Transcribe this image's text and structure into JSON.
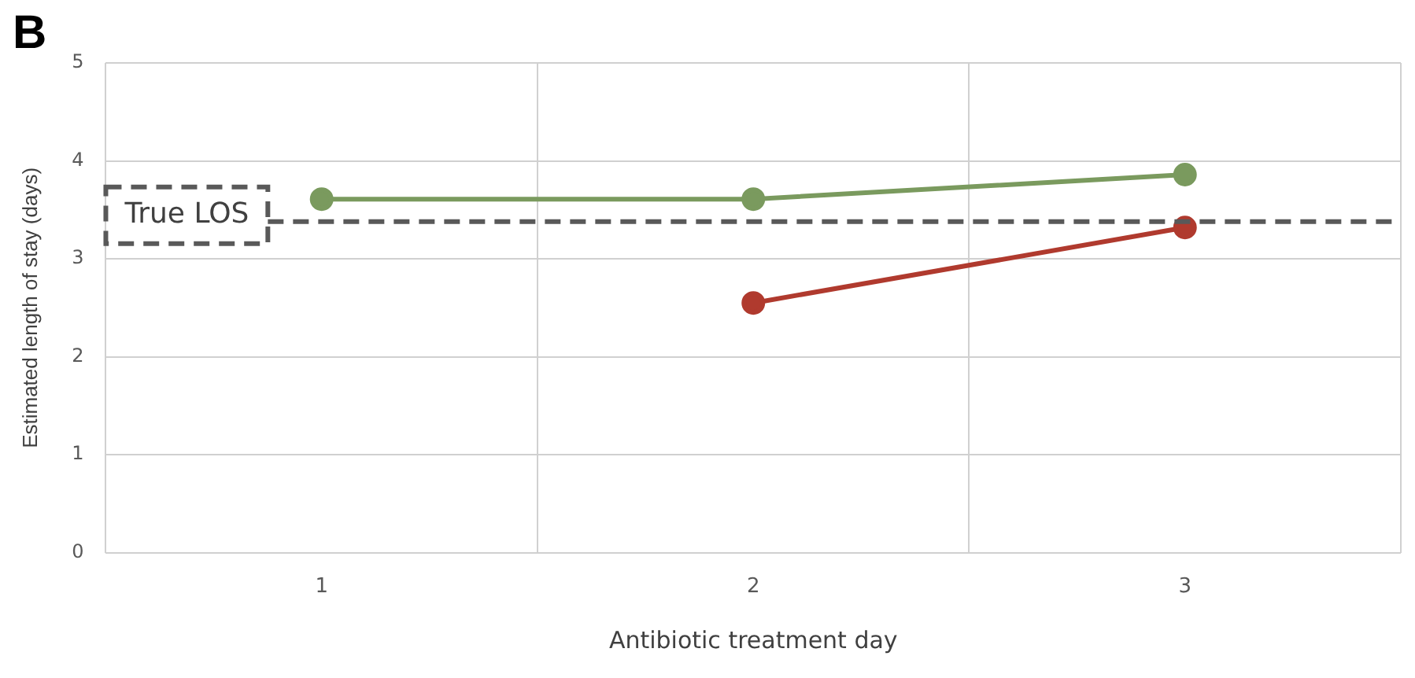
{
  "chart_data": {
    "type": "line",
    "title": "B",
    "xlabel": "Antibiotic treatment day",
    "ylabel": "Estimated length of stay (days)",
    "categories": [
      "1",
      "2",
      "3"
    ],
    "series": [
      {
        "color": "#7a9a5e",
        "values": [
          3.61,
          3.61,
          3.86
        ]
      },
      {
        "color": "#b03a2e",
        "values": [
          null,
          2.55,
          3.32
        ]
      }
    ],
    "ylim": [
      0,
      5
    ],
    "yticks": [
      0,
      1,
      2,
      3,
      4,
      5
    ],
    "grid": true,
    "legend": false,
    "marker": "circle",
    "line_style": "solid",
    "ref_lines": [
      {
        "axis": "y",
        "value": 3.38,
        "label": "True LOS",
        "color": "#595959",
        "line_style": "dashed"
      }
    ]
  }
}
